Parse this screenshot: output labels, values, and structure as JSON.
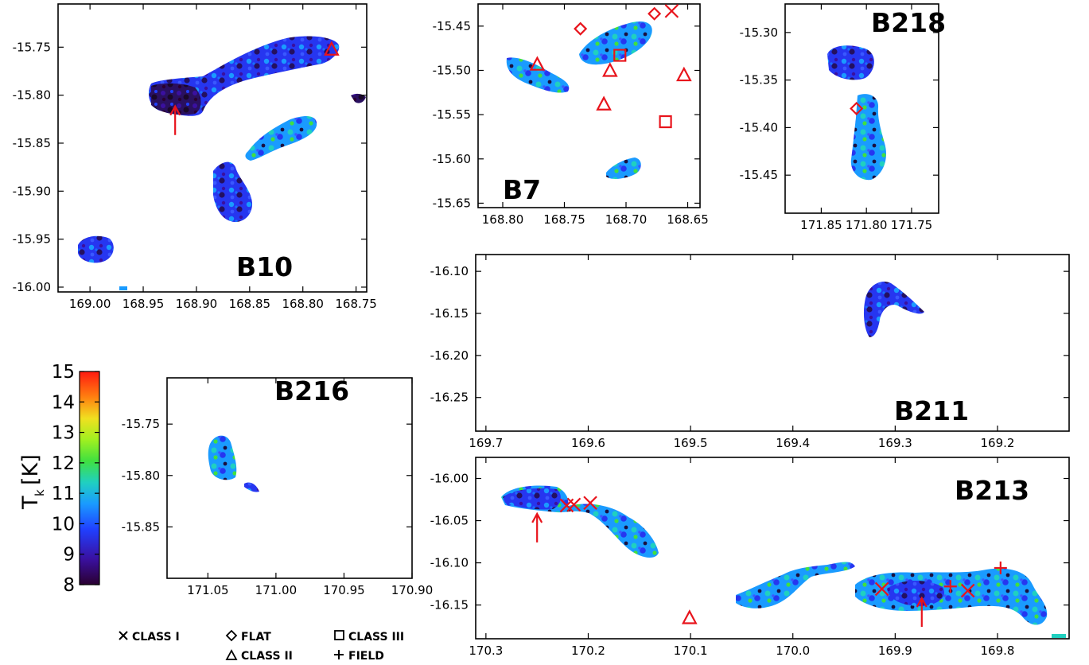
{
  "colorbar": {
    "label_main": "T",
    "label_sub": "k",
    "label_unit": "[K]",
    "ticks": [
      "15",
      "14",
      "13",
      "12",
      "11",
      "10",
      "9",
      "8"
    ],
    "range": [
      8,
      15
    ],
    "colors": [
      "#2a0030",
      "#3a10a0",
      "#2040ff",
      "#1a9bff",
      "#20d0c0",
      "#40e040",
      "#a0f020",
      "#f0e020",
      "#ff8010",
      "#ff1a10"
    ]
  },
  "legend": {
    "class1": "CLASS I",
    "flat": "FLAT",
    "class3": "CLASS III",
    "class2": "CLASS II",
    "field": "FIELD"
  },
  "chart_data": [
    {
      "type": "heatmap",
      "title": "B10",
      "xlim": [
        169.03,
        168.74
      ],
      "ylim": [
        -16.005,
        -15.705
      ],
      "x_ticks": [
        "169.00",
        "168.95",
        "168.90",
        "168.85",
        "168.80",
        "168.75"
      ],
      "y_ticks": [
        "-15.75",
        "-15.80",
        "-15.85",
        "-15.90",
        "-15.95",
        "-16.00"
      ],
      "markers": [
        {
          "symbol": "arrow",
          "x": 168.92,
          "y": -15.81
        },
        {
          "symbol": "triangle",
          "x": 168.773,
          "y": -15.752
        }
      ]
    },
    {
      "type": "heatmap",
      "title": "B7",
      "xlim": [
        168.82,
        168.64
      ],
      "ylim": [
        -15.655,
        -15.425
      ],
      "x_ticks": [
        "168.80",
        "168.75",
        "168.70",
        "168.65"
      ],
      "y_ticks": [
        "-15.45",
        "-15.50",
        "-15.55",
        "-15.60",
        "-15.65"
      ],
      "markers": [
        {
          "symbol": "diamond",
          "x": 168.737,
          "y": -15.453
        },
        {
          "symbol": "diamond",
          "x": 168.677,
          "y": -15.436
        },
        {
          "symbol": "x",
          "x": 168.663,
          "y": -15.433
        },
        {
          "symbol": "triangle",
          "x": 168.772,
          "y": -15.493
        },
        {
          "symbol": "square",
          "x": 168.705,
          "y": -15.483
        },
        {
          "symbol": "triangle",
          "x": 168.713,
          "y": -15.5
        },
        {
          "symbol": "triangle",
          "x": 168.653,
          "y": -15.505
        },
        {
          "symbol": "triangle",
          "x": 168.718,
          "y": -15.538
        },
        {
          "symbol": "square",
          "x": 168.668,
          "y": -15.558
        }
      ]
    },
    {
      "type": "heatmap",
      "title": "B218",
      "xlim": [
        171.89,
        171.72
      ],
      "ylim": [
        -15.49,
        -15.27
      ],
      "x_ticks": [
        "171.85",
        "171.80",
        "171.75"
      ],
      "y_ticks": [
        "-15.30",
        "-15.35",
        "-15.40",
        "-15.45"
      ],
      "markers": [
        {
          "symbol": "diamond",
          "x": 171.811,
          "y": -15.38
        }
      ]
    },
    {
      "type": "heatmap",
      "title": "B211",
      "xlim": [
        169.71,
        169.13
      ],
      "ylim": [
        -16.29,
        -16.08
      ],
      "x_ticks": [
        "169.7",
        "169.6",
        "169.5",
        "169.4",
        "169.3",
        "169.2"
      ],
      "y_ticks": [
        "-16.10",
        "-16.15",
        "-16.20",
        "-16.25"
      ],
      "markers": []
    },
    {
      "type": "heatmap",
      "title": "B216",
      "xlim": [
        171.08,
        170.9
      ],
      "ylim": [
        -15.9,
        -15.705
      ],
      "x_ticks": [
        "171.05",
        "171.00",
        "170.95",
        "170.90"
      ],
      "y_ticks": [
        "-15.75",
        "-15.80",
        "-15.85"
      ],
      "markers": []
    },
    {
      "type": "heatmap",
      "title": "B213",
      "xlim": [
        170.31,
        169.73
      ],
      "ylim": [
        -16.19,
        -15.975
      ],
      "x_ticks": [
        "170.3",
        "170.2",
        "170.1",
        "170.0",
        "169.9",
        "169.8"
      ],
      "y_ticks": [
        "-16.00",
        "-16.05",
        "-16.10",
        "-16.15"
      ],
      "markers": [
        {
          "symbol": "arrow",
          "x": 170.25,
          "y": -16.04
        },
        {
          "symbol": "x",
          "x": 170.221,
          "y": -16.032
        },
        {
          "symbol": "x",
          "x": 170.214,
          "y": -16.031
        },
        {
          "symbol": "x",
          "x": 170.198,
          "y": -16.029
        },
        {
          "symbol": "triangle",
          "x": 170.101,
          "y": -16.165
        },
        {
          "symbol": "x",
          "x": 169.913,
          "y": -16.131
        },
        {
          "symbol": "arrow",
          "x": 169.874,
          "y": -16.14
        },
        {
          "symbol": "plus",
          "x": 169.846,
          "y": -16.128
        },
        {
          "symbol": "x",
          "x": 169.829,
          "y": -16.133
        },
        {
          "symbol": "plus",
          "x": 169.797,
          "y": -16.106
        }
      ]
    }
  ]
}
